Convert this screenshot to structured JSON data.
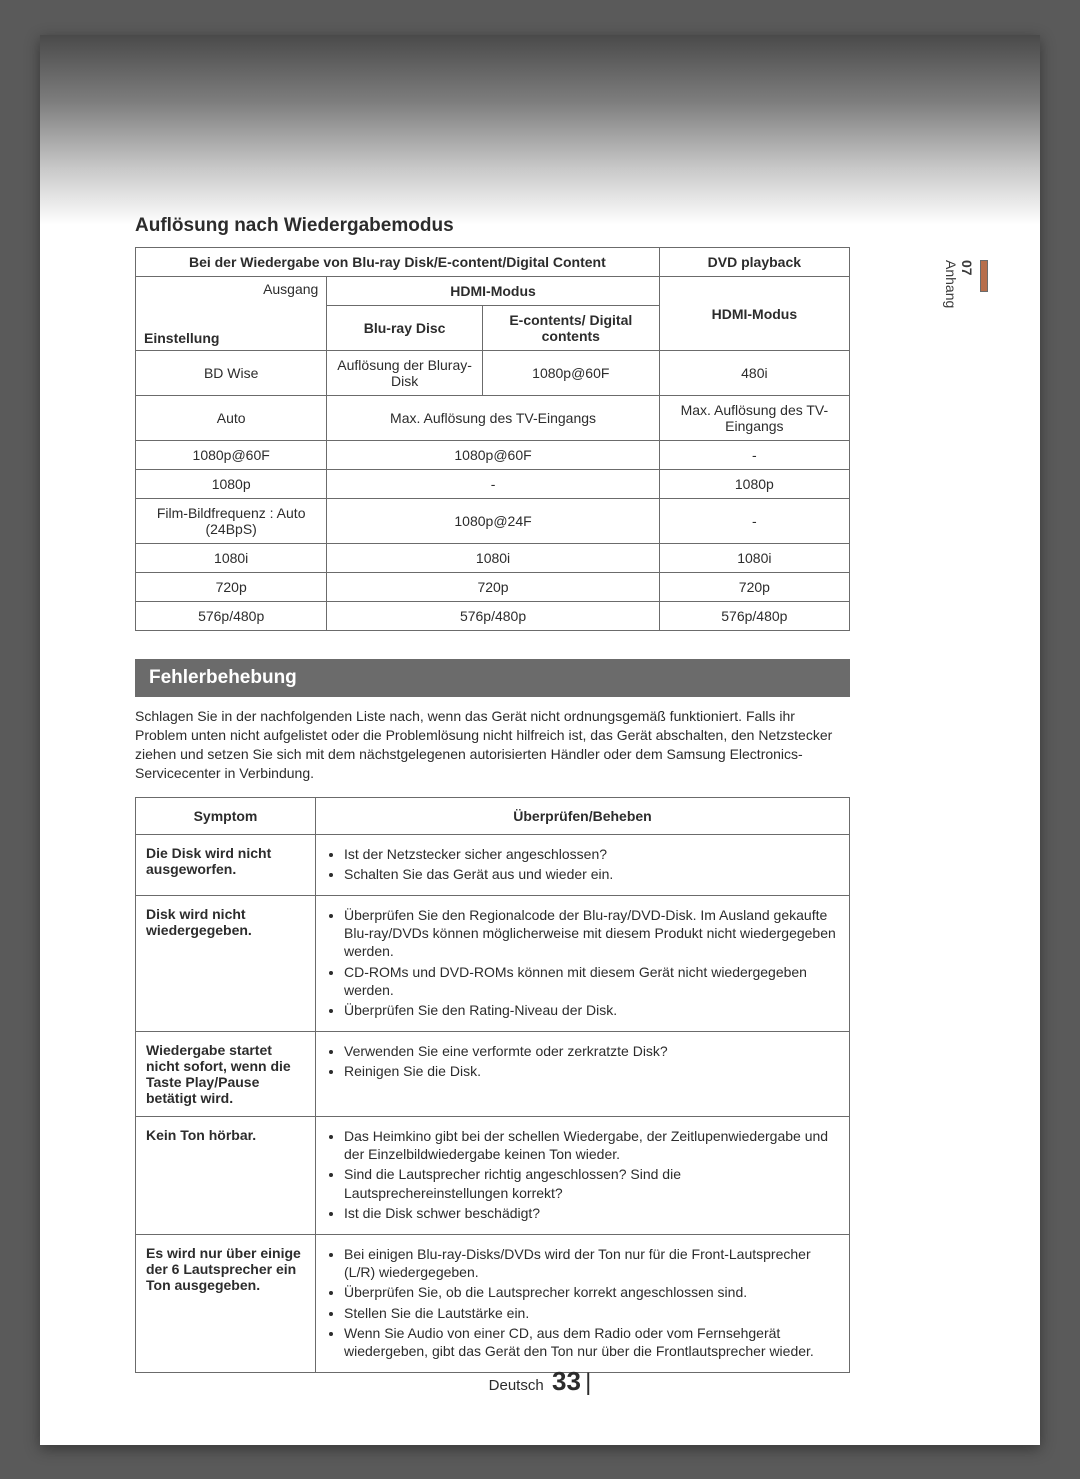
{
  "side": {
    "chapter": "07",
    "label": "Anhang"
  },
  "section1_title": "Auflösung nach Wiedergabemodus",
  "res_table": {
    "h_bluray": "Bei der Wiedergabe von Blu-ray Disk/E-content/Digital Content",
    "h_dvd": "DVD playback",
    "h_hdmi": "HDMI-Modus",
    "h_bd_disc": "Blu-ray Disc",
    "h_ec": "E-contents/\nDigital contents",
    "setting_ausgang": "Ausgang",
    "setting_einstellung": "Einstellung",
    "rows": [
      {
        "c0": "BD Wise",
        "c1": "Auflösung der Bluray-Disk",
        "c2": "1080p@60F",
        "c3": "480i"
      },
      {
        "c0": "Auto",
        "c12": "Max. Auflösung des TV-Eingangs",
        "c3": "Max. Auflösung des TV-Eingangs"
      },
      {
        "c0": "1080p@60F",
        "c12": "1080p@60F",
        "c3": "-"
      },
      {
        "c0": "1080p",
        "c12": "-",
        "c3": "1080p"
      },
      {
        "c0": "Film-Bildfrequenz : Auto (24BpS)",
        "c12": "1080p@24F",
        "c3": "-"
      },
      {
        "c0": "1080i",
        "c12": "1080i",
        "c3": "1080i"
      },
      {
        "c0": "720p",
        "c12": "720p",
        "c3": "720p"
      },
      {
        "c0": "576p/480p",
        "c12": "576p/480p",
        "c3": "576p/480p"
      }
    ]
  },
  "section2_title": "Fehlerbehebung",
  "intro": "Schlagen Sie in der nachfolgenden Liste nach, wenn das Gerät nicht ordnungsgemäß funktioniert. Falls ihr Problem unten nicht aufgelistet oder die Problemlösung nicht hilfreich ist, das Gerät abschalten, den Netzstecker ziehen und setzen Sie sich mit dem nächstgelegenen autorisierten Händler oder dem Samsung Electronics-Servicecenter in Verbindung.",
  "tb": {
    "h_sym": "Symptom",
    "h_fix": "Überprüfen/Beheben",
    "rows": [
      {
        "sym": "Die Disk wird nicht ausgeworfen.",
        "items": [
          "Ist der Netzstecker sicher angeschlossen?",
          "Schalten Sie das Gerät aus und wieder ein."
        ]
      },
      {
        "sym": "Disk wird nicht wiedergegeben.",
        "items": [
          "Überprüfen Sie den Regionalcode der Blu-ray/DVD-Disk. Im Ausland gekaufte Blu-ray/DVDs können möglicherweise mit diesem Produkt nicht wiedergegeben werden.",
          "CD-ROMs und DVD-ROMs können mit diesem Gerät nicht wiedergegeben werden.",
          "Überprüfen Sie den Rating-Niveau der Disk."
        ]
      },
      {
        "sym": "Wiedergabe startet nicht sofort, wenn die Taste Play/Pause betätigt wird.",
        "items": [
          "Verwenden Sie eine verformte oder zerkratzte Disk?",
          "Reinigen Sie die Disk."
        ]
      },
      {
        "sym": "Kein Ton hörbar.",
        "items": [
          "Das Heimkino gibt bei der schellen Wiedergabe, der Zeitlupenwiedergabe und der Einzelbildwiedergabe keinen Ton wieder.",
          "Sind die Lautsprecher richtig angeschlossen? Sind die Lautsprechereinstellungen korrekt?",
          "Ist die Disk schwer beschädigt?"
        ]
      },
      {
        "sym": "Es wird nur über einige der 6 Lautsprecher ein Ton ausgegeben.",
        "items": [
          "Bei einigen Blu-ray-Disks/DVDs wird der Ton nur für die Front-Lautsprecher (L/R) wiedergegeben.",
          "Überprüfen Sie, ob die Lautsprecher korrekt angeschlossen sind.",
          "Stellen Sie die Lautstärke ein.",
          "Wenn Sie Audio von einer CD, aus dem Radio oder vom Fernsehgerät wiedergeben, gibt das Gerät den Ton nur über die Frontlautsprecher wieder."
        ]
      }
    ]
  },
  "footer": {
    "lang": "Deutsch",
    "page": "33"
  }
}
